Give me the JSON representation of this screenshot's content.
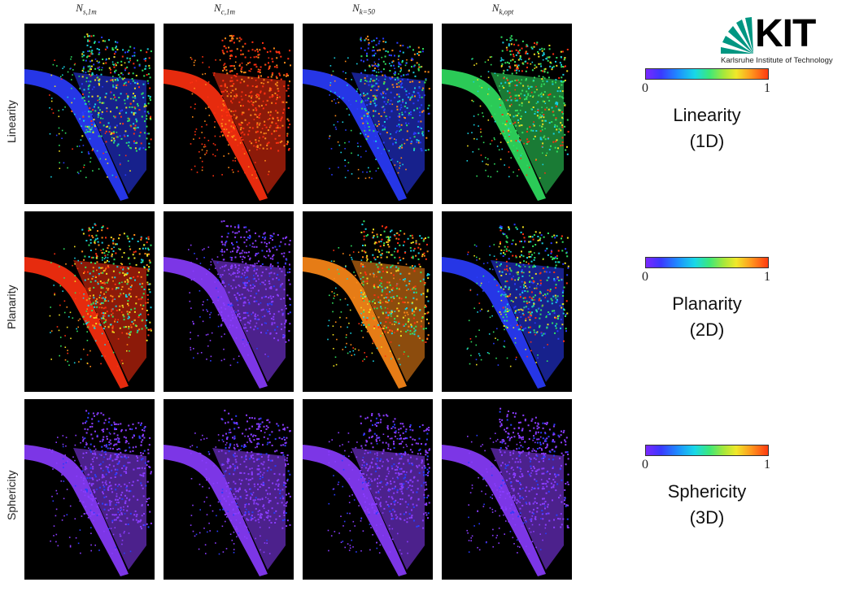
{
  "columns": [
    {
      "base": "N",
      "sub": "s,1m"
    },
    {
      "base": "N",
      "sub": "c,1m"
    },
    {
      "base": "N",
      "sub": "k=50"
    },
    {
      "base": "N",
      "sub": "k,opt"
    }
  ],
  "rows": [
    {
      "label": "Linearity",
      "colorbar_min": "0",
      "colorbar_max": "1",
      "title": "Linearity",
      "dim": "(1D)"
    },
    {
      "label": "Planarity",
      "colorbar_min": "0",
      "colorbar_max": "1",
      "title": "Planarity",
      "dim": "(2D)"
    },
    {
      "label": "Sphericity",
      "colorbar_min": "0",
      "colorbar_max": "1",
      "title": "Sphericity",
      "dim": "(3D)"
    }
  ],
  "panel_palettes": [
    [
      "mixed-green",
      "saturated-red",
      "mixed-blue",
      "mixed-lime"
    ],
    [
      "mixed-red",
      "violet",
      "mixed-orange",
      "mixed-green"
    ],
    [
      "violet",
      "violet",
      "violet",
      "violet"
    ]
  ],
  "colors": {
    "violet": "#8a3cff",
    "blue": "#2a3cff",
    "cyan": "#18d0e0",
    "green": "#30e060",
    "yellow": "#f0e020",
    "orange": "#ff8a18",
    "red": "#ff3010"
  },
  "logo": {
    "text": "KIT",
    "subtitle": "Karlsruhe Institute of Technology",
    "icon": "kit-fan-icon"
  }
}
